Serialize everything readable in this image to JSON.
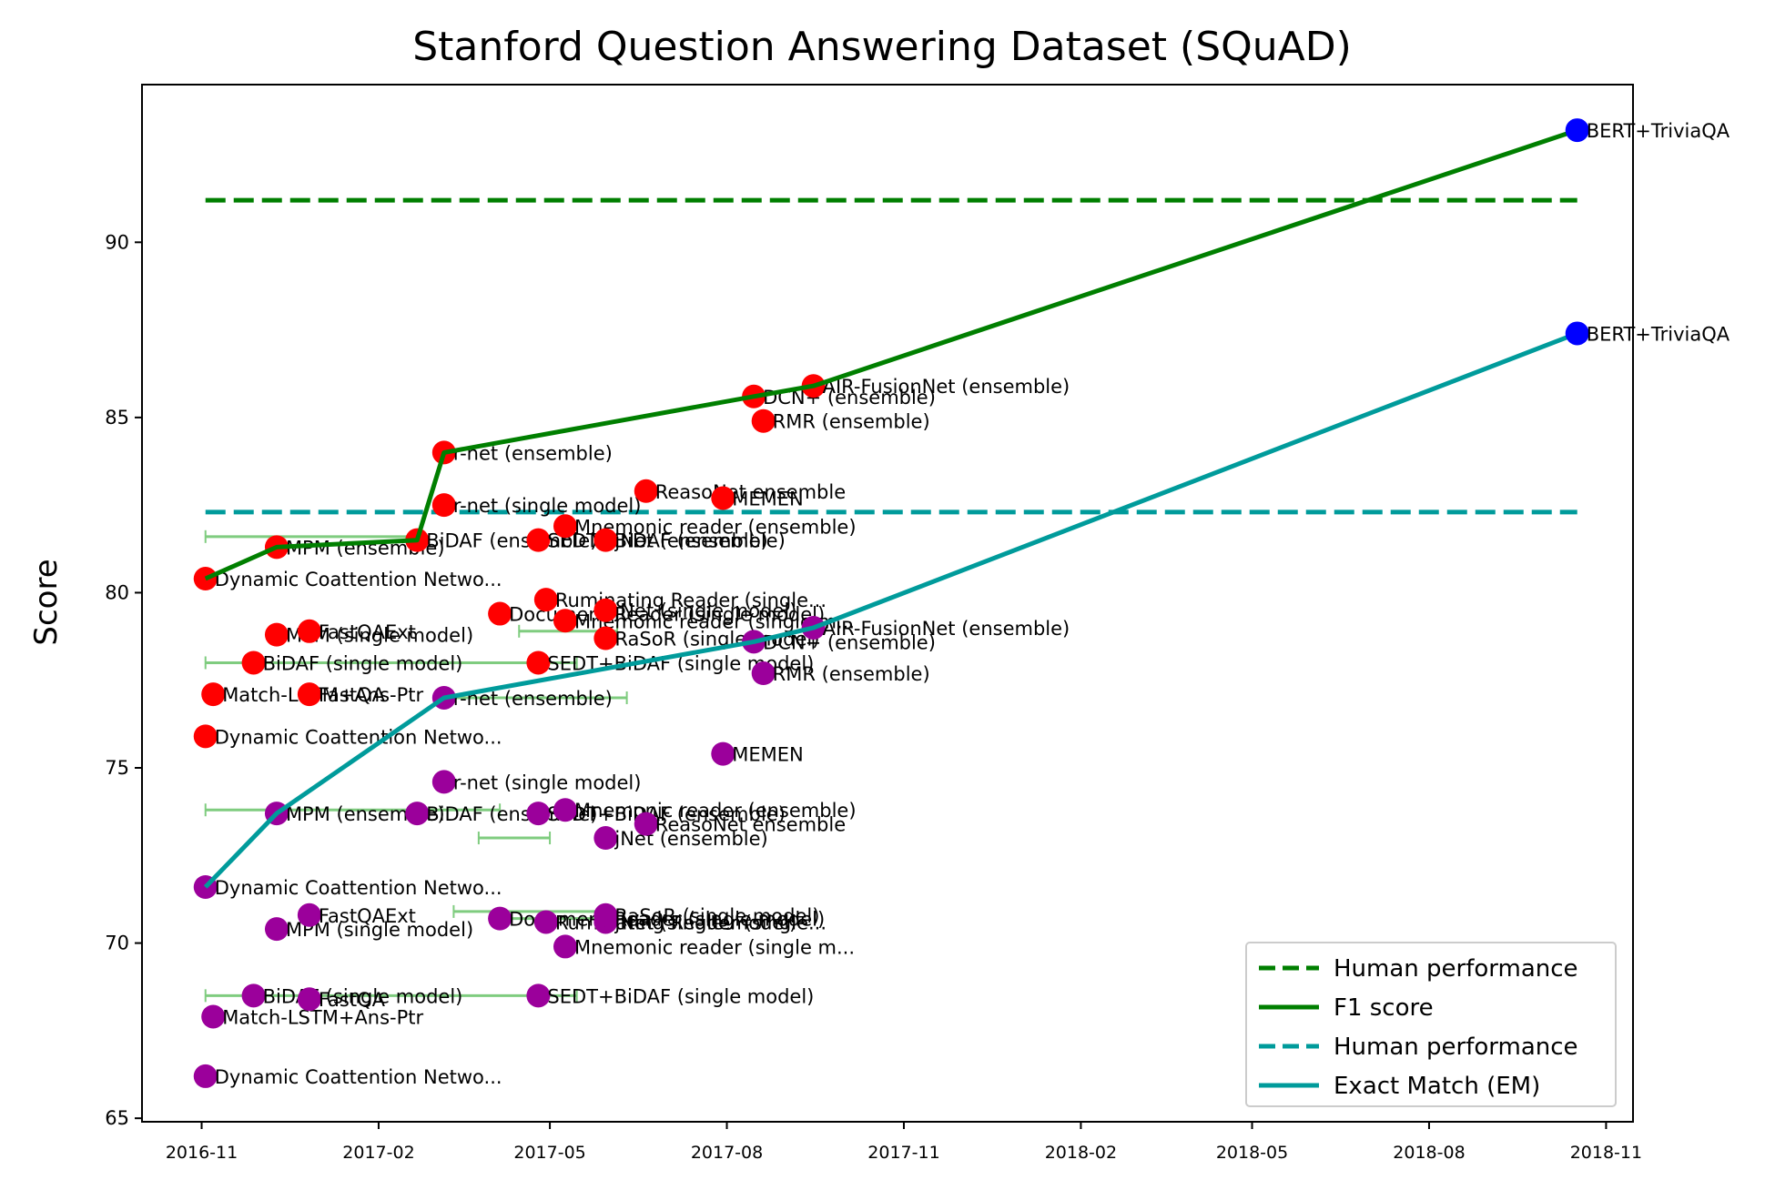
{
  "chart_data": {
    "type": "scatter",
    "title": "Stanford Question Answering Dataset (SQuAD)",
    "xlabel": "",
    "ylabel": "Score",
    "xlim": [
      "2016-10-01",
      "2018-11-15"
    ],
    "ylim": [
      64.9,
      94.5
    ],
    "x_ticks": [
      "2016-11",
      "2017-02",
      "2017-05",
      "2017-08",
      "2017-11",
      "2018-02",
      "2018-05",
      "2018-08",
      "2018-11"
    ],
    "y_ticks": [
      65,
      70,
      75,
      80,
      85,
      90
    ],
    "grid": false,
    "legend_position": "lower-right",
    "colors": {
      "human_f1": "#007f00",
      "f1_line": "#007f00",
      "human_em": "#009b9b",
      "em_line": "#009b9b",
      "f1_point": "#ff0000",
      "em_point": "#9b009b",
      "latest_point": "#0000ff",
      "error_bar": "#7fcc7f"
    },
    "legend": [
      {
        "label": "Human performance",
        "style": "dashed",
        "series": "human_f1"
      },
      {
        "label": "F1 score",
        "style": "solid",
        "series": "f1_line"
      },
      {
        "label": "Human performance",
        "style": "dashed",
        "series": "human_em"
      },
      {
        "label": "Exact Match (EM)",
        "style": "solid",
        "series": "em_line"
      }
    ],
    "human_performance": {
      "f1": 91.2,
      "em": 82.3,
      "x_start": "2016-11-03",
      "x_end": "2018-10-17"
    },
    "f1_line": [
      {
        "x": "2016-11-03",
        "y": 80.4
      },
      {
        "x": "2016-12-10",
        "y": 81.3
      },
      {
        "x": "2017-02-21",
        "y": 81.5
      },
      {
        "x": "2017-03-07",
        "y": 84.0
      },
      {
        "x": "2017-08-15",
        "y": 85.6
      },
      {
        "x": "2017-09-15",
        "y": 85.9
      },
      {
        "x": "2018-10-17",
        "y": 93.2
      }
    ],
    "em_line": [
      {
        "x": "2016-11-03",
        "y": 71.6
      },
      {
        "x": "2016-12-10",
        "y": 73.7
      },
      {
        "x": "2017-03-07",
        "y": 77.0
      },
      {
        "x": "2017-08-15",
        "y": 78.6
      },
      {
        "x": "2017-09-15",
        "y": 79.0
      },
      {
        "x": "2018-10-17",
        "y": 87.4
      }
    ],
    "error_bars": [
      {
        "x1": "2016-11-03",
        "x2": "2017-02-21",
        "y": 81.6
      },
      {
        "x1": "2017-04-15",
        "x2": "2017-06-05",
        "y": 78.9
      },
      {
        "x1": "2016-11-03",
        "x2": "2017-05-15",
        "y": 78.0
      },
      {
        "x1": "2017-03-07",
        "x2": "2017-06-10",
        "y": 77.0
      },
      {
        "x1": "2016-11-03",
        "x2": "2017-04-05",
        "y": 73.8
      },
      {
        "x1": "2017-03-25",
        "x2": "2017-05-01",
        "y": 73.0
      },
      {
        "x1": "2017-03-12",
        "x2": "2017-06-01",
        "y": 70.9
      },
      {
        "x1": "2017-04-01",
        "x2": "2017-06-01",
        "y": 70.7
      },
      {
        "x1": "2016-11-03",
        "x2": "2017-05-15",
        "y": 68.5
      }
    ],
    "f1_points": [
      {
        "x": "2016-11-03",
        "y": 80.4,
        "label": "Dynamic Coattention Netwo..."
      },
      {
        "x": "2016-11-03",
        "y": 75.9,
        "label": "Dynamic Coattention Netwo..."
      },
      {
        "x": "2016-11-07",
        "y": 77.1,
        "label": "Match-LSTM+Ans-Ptr"
      },
      {
        "x": "2016-11-28",
        "y": 78.0,
        "label": "BiDAF (single model)"
      },
      {
        "x": "2016-12-10",
        "y": 81.3,
        "label": "MPM (ensemble)"
      },
      {
        "x": "2016-12-10",
        "y": 78.8,
        "label": "MPM (single model)"
      },
      {
        "x": "2016-12-27",
        "y": 78.9,
        "label": "FastQAExt"
      },
      {
        "x": "2016-12-27",
        "y": 77.1,
        "label": "FastQA"
      },
      {
        "x": "2017-02-21",
        "y": 81.5,
        "label": "BiDAF (ensemble)"
      },
      {
        "x": "2017-03-07",
        "y": 84.0,
        "label": "r-net (ensemble)"
      },
      {
        "x": "2017-03-07",
        "y": 82.5,
        "label": "r-net (single model)"
      },
      {
        "x": "2017-04-05",
        "y": 79.4,
        "label": "Document Reader (single model)"
      },
      {
        "x": "2017-04-25",
        "y": 81.5,
        "label": "SEDT+BiDAF (ensemble)"
      },
      {
        "x": "2017-04-25",
        "y": 78.0,
        "label": "SEDT+BiDAF (single model)"
      },
      {
        "x": "2017-04-29",
        "y": 79.8,
        "label": "Ruminating Reader (single..."
      },
      {
        "x": "2017-05-09",
        "y": 81.9,
        "label": "Mnemonic reader (ensemble)"
      },
      {
        "x": "2017-05-09",
        "y": 79.2,
        "label": "Mnemonic reader (single m..."
      },
      {
        "x": "2017-05-30",
        "y": 81.5,
        "label": "jNet (ensemble)"
      },
      {
        "x": "2017-05-30",
        "y": 79.5,
        "label": "jNet (single model)"
      },
      {
        "x": "2017-05-30",
        "y": 78.7,
        "label": "RaSoR (single model)"
      },
      {
        "x": "2017-06-20",
        "y": 82.9,
        "label": "ReasoNet ensemble"
      },
      {
        "x": "2017-07-30",
        "y": 82.7,
        "label": "MEMEN"
      },
      {
        "x": "2017-08-15",
        "y": 85.6,
        "label": "DCN+ (ensemble)"
      },
      {
        "x": "2017-08-20",
        "y": 84.9,
        "label": "RMR (ensemble)"
      },
      {
        "x": "2017-09-15",
        "y": 85.9,
        "label": "AIR-FusionNet (ensemble)"
      }
    ],
    "em_points": [
      {
        "x": "2016-11-03",
        "y": 71.6,
        "label": "Dynamic Coattention Netwo..."
      },
      {
        "x": "2016-11-03",
        "y": 66.2,
        "label": "Dynamic Coattention Netwo..."
      },
      {
        "x": "2016-11-07",
        "y": 67.9,
        "label": "Match-LSTM+Ans-Ptr"
      },
      {
        "x": "2016-11-28",
        "y": 68.5,
        "label": "BiDAF (single model)"
      },
      {
        "x": "2016-12-10",
        "y": 73.7,
        "label": "MPM (ensemble)"
      },
      {
        "x": "2016-12-10",
        "y": 70.4,
        "label": "MPM (single model)"
      },
      {
        "x": "2016-12-27",
        "y": 70.8,
        "label": "FastQAExt"
      },
      {
        "x": "2016-12-27",
        "y": 68.4,
        "label": "FastQA"
      },
      {
        "x": "2017-02-21",
        "y": 73.7,
        "label": "BiDAF (ensemble)"
      },
      {
        "x": "2017-03-07",
        "y": 77.0,
        "label": "r-net (ensemble)"
      },
      {
        "x": "2017-03-07",
        "y": 74.6,
        "label": "r-net (single model)"
      },
      {
        "x": "2017-04-05",
        "y": 70.7,
        "label": "Document Reader (single model)"
      },
      {
        "x": "2017-04-25",
        "y": 73.7,
        "label": "SEDT+BiDAF (ensemble)"
      },
      {
        "x": "2017-04-25",
        "y": 68.5,
        "label": "SEDT+BiDAF (single model)"
      },
      {
        "x": "2017-04-29",
        "y": 70.6,
        "label": "Ruminating Reader (single..."
      },
      {
        "x": "2017-05-09",
        "y": 73.8,
        "label": "Mnemonic reader (ensemble)"
      },
      {
        "x": "2017-05-09",
        "y": 69.9,
        "label": "Mnemonic reader (single m..."
      },
      {
        "x": "2017-05-30",
        "y": 73.0,
        "label": "jNet (ensemble)"
      },
      {
        "x": "2017-05-30",
        "y": 70.6,
        "label": "jNet (single model)"
      },
      {
        "x": "2017-05-30",
        "y": 70.8,
        "label": "RaSoR (single model)"
      },
      {
        "x": "2017-06-20",
        "y": 73.4,
        "label": "ReasoNet ensemble"
      },
      {
        "x": "2017-07-30",
        "y": 75.4,
        "label": "MEMEN"
      },
      {
        "x": "2017-08-15",
        "y": 78.6,
        "label": "DCN+ (ensemble)"
      },
      {
        "x": "2017-08-20",
        "y": 77.7,
        "label": "RMR (ensemble)"
      },
      {
        "x": "2017-09-15",
        "y": 79.0,
        "label": "AIR-FusionNet (ensemble)"
      }
    ],
    "latest_points": [
      {
        "x": "2018-10-17",
        "y": 93.2,
        "label": "BERT+TriviaQA"
      },
      {
        "x": "2018-10-17",
        "y": 87.4,
        "label": "BERT+TriviaQA"
      }
    ]
  }
}
